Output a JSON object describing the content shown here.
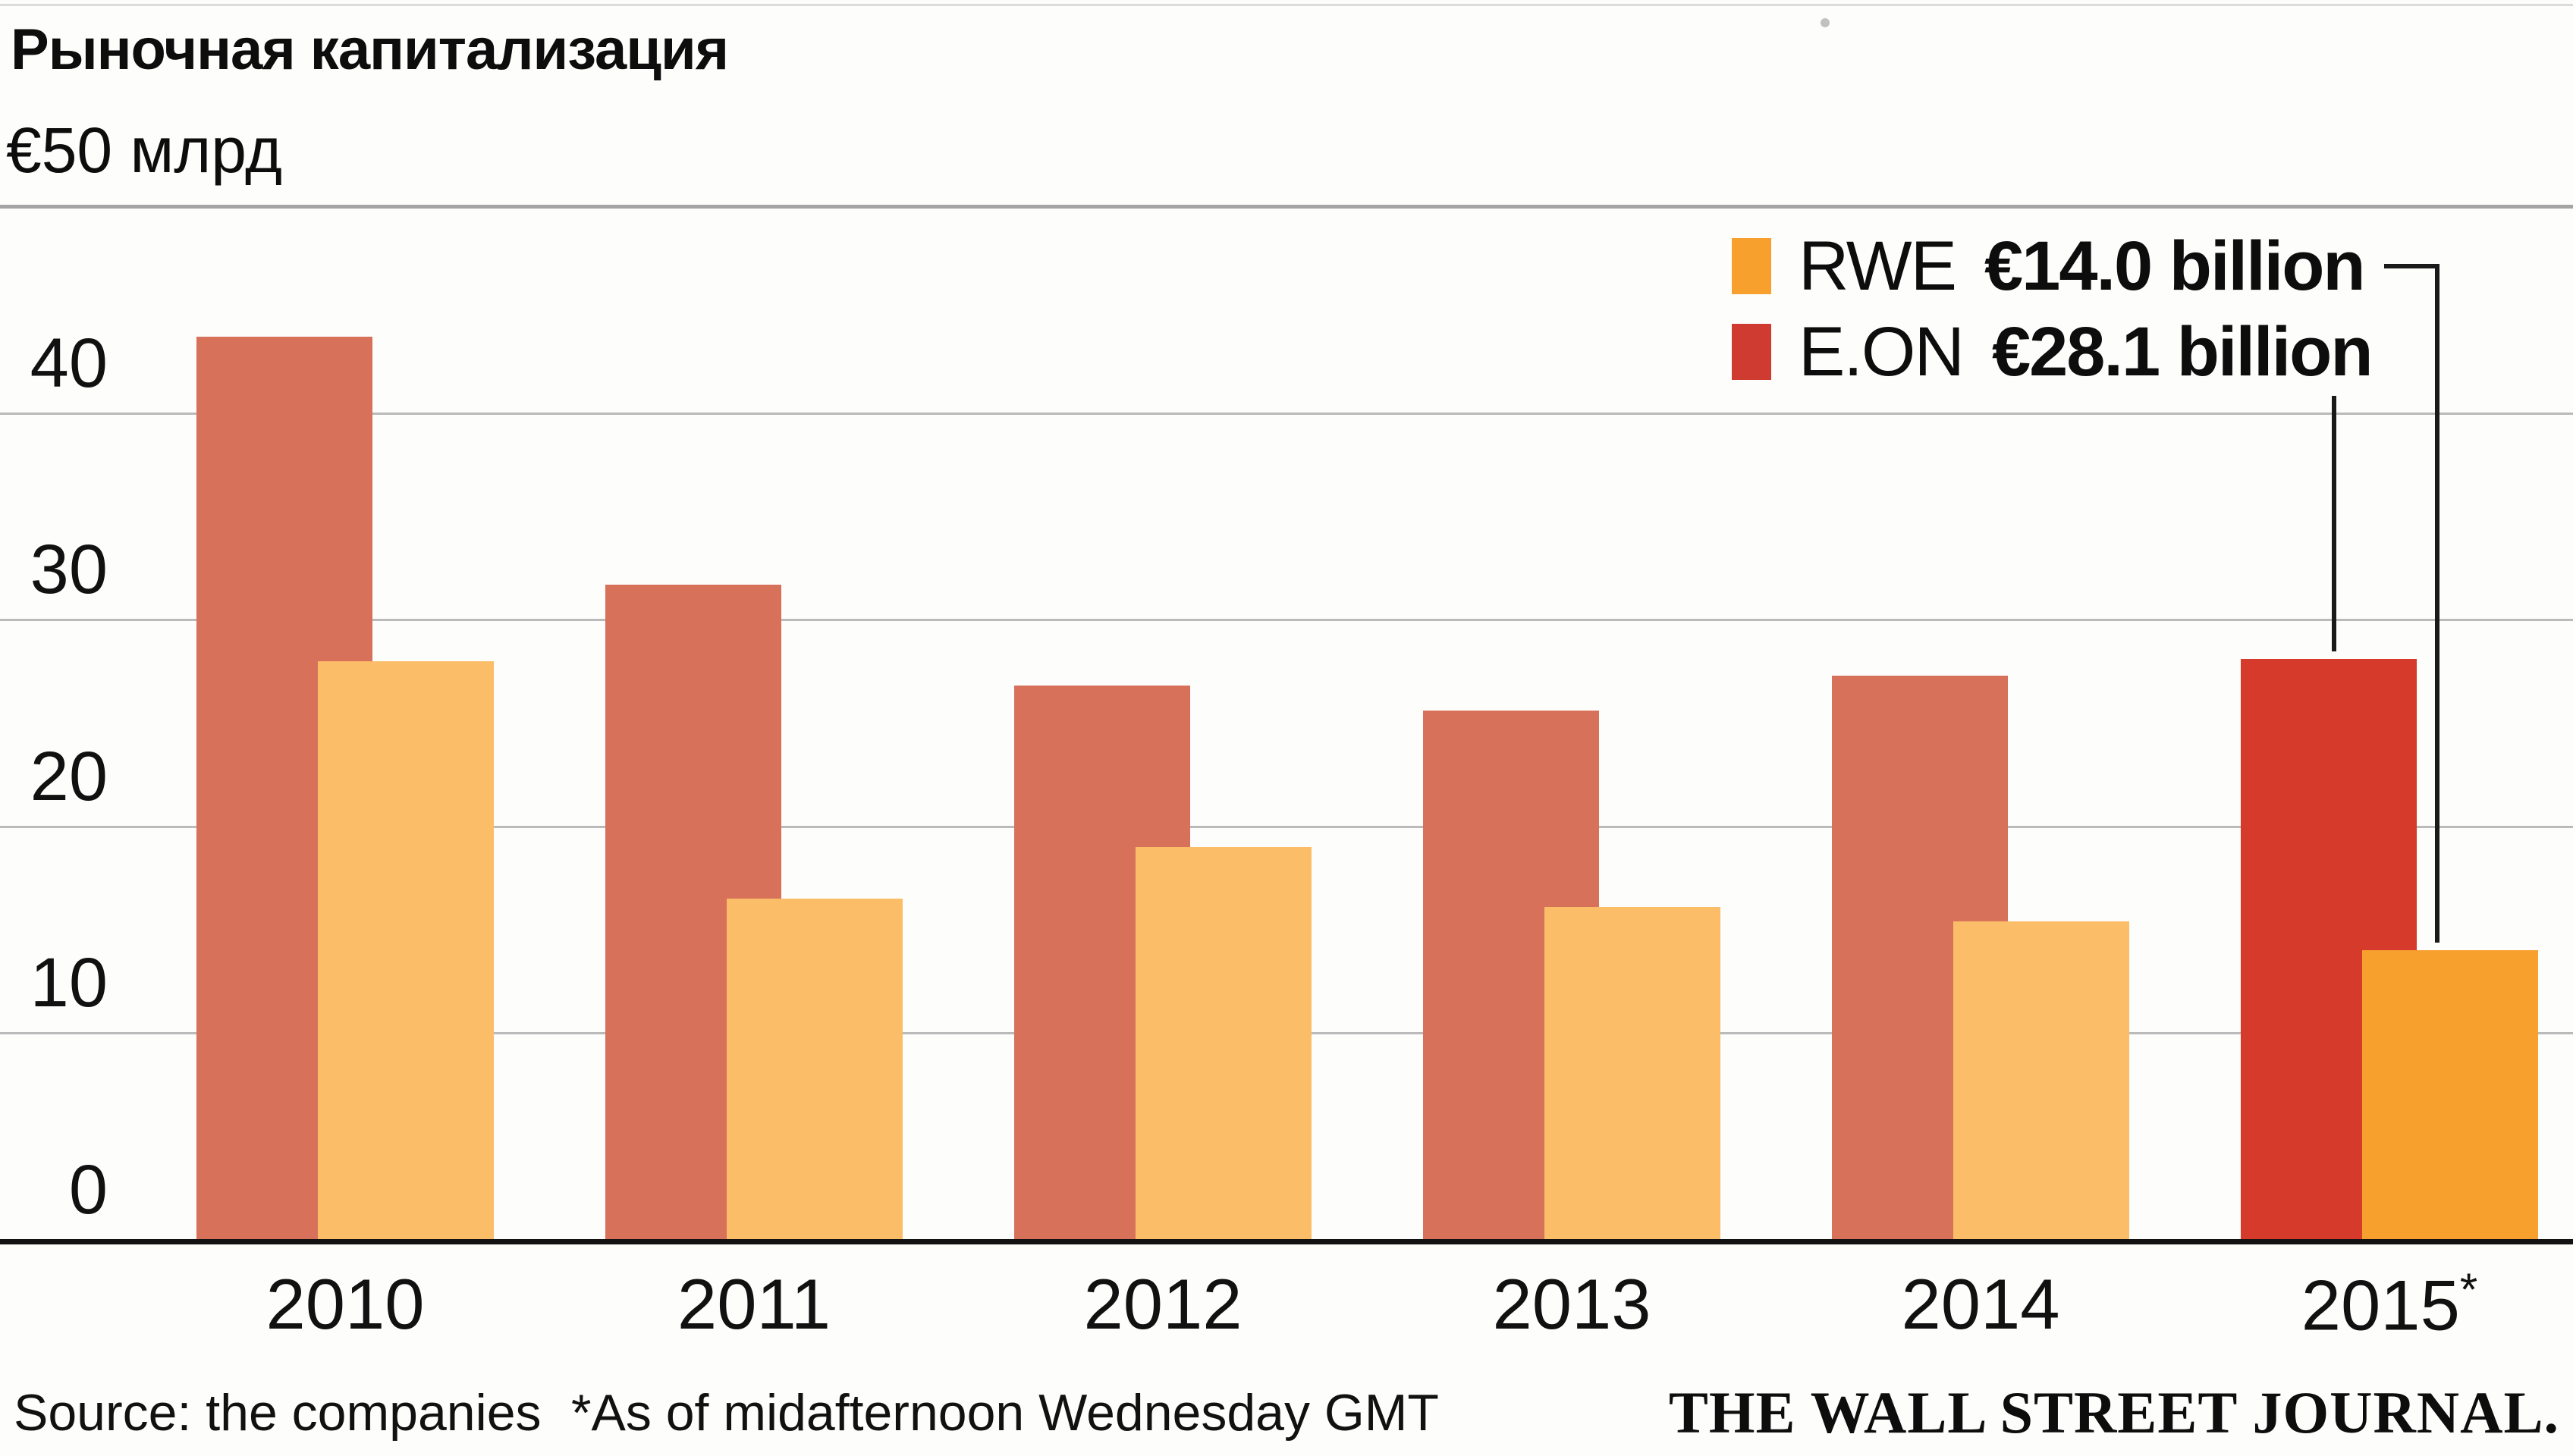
{
  "header": {
    "title": "Рыночная капитализация",
    "axis_unit": "€50 млрд"
  },
  "chart_data": {
    "type": "bar",
    "title": "Рыночная капитализация",
    "unit_label": "€50 млрд",
    "categories": [
      "2010",
      "2011",
      "2012",
      "2013",
      "2014",
      "2015*"
    ],
    "series": [
      {
        "name": "E.ON",
        "color": "#d7715a",
        "highlight_color": "#d53a2b",
        "values": [
          43.7,
          31.7,
          26.8,
          25.6,
          27.3,
          28.1
        ]
      },
      {
        "name": "RWE",
        "color": "#fbbd68",
        "highlight_color": "#f7a02e",
        "values": [
          28.0,
          16.5,
          19.0,
          16.1,
          15.4,
          14.0
        ]
      }
    ],
    "highlight_category_index": 5,
    "ylim": [
      0,
      50
    ],
    "yticks": [
      0,
      10,
      20,
      30,
      40
    ],
    "grid": "horizontal-only",
    "legend_position": "top-right"
  },
  "legend": {
    "items": [
      {
        "swatch_color": "#f7a02e",
        "name": "RWE",
        "value": "€14.0 billion"
      },
      {
        "swatch_color": "#cf3b30",
        "name": "E.ON",
        "value": "€28.1 billion"
      }
    ]
  },
  "footer": {
    "source": "Source: the companies",
    "footnote": "*As of midafternoon Wednesday GMT",
    "credit": "THE WALL STREET JOURNAL."
  }
}
